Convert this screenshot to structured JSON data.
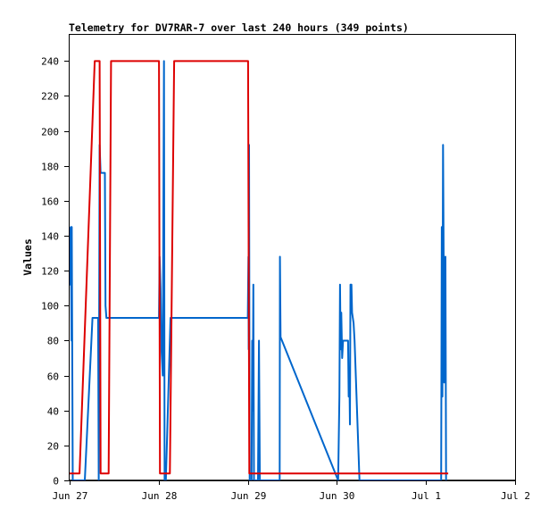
{
  "chart_data": {
    "type": "line",
    "title": "Telemetry for DV7RAR-7 over last 240 hours (349 points)",
    "xlabel": "",
    "ylabel": "Values",
    "x_ticks": [
      "Jun 27",
      "Jun 28",
      "Jun 29",
      "Jun 30",
      "Jul 1",
      "Jul 2"
    ],
    "y_ticks": [
      0,
      20,
      40,
      60,
      80,
      100,
      120,
      140,
      160,
      180,
      200,
      220,
      240
    ],
    "xlim": [
      "Jun 27",
      "Jul 2"
    ],
    "ylim": [
      0,
      255
    ],
    "grid": false,
    "legend": "none",
    "series": [
      {
        "color": "#000000",
        "points": [
          [
            "06-27 00:00",
            0
          ],
          [
            "07-02 00:00",
            0
          ]
        ]
      },
      {
        "color": "#0066cc",
        "points": [
          [
            "06-27 00:00",
            145
          ],
          [
            "06-27 00:10",
            112
          ],
          [
            "06-27 00:20",
            145
          ],
          [
            "06-27 00:30",
            80
          ],
          [
            "06-27 00:35",
            145
          ],
          [
            "06-27 00:40",
            90
          ],
          [
            "06-27 00:50",
            0
          ],
          [
            "06-27 04:05",
            0
          ],
          [
            "06-27 06:10",
            93
          ],
          [
            "06-27 07:40",
            93
          ],
          [
            "06-27 07:50",
            0
          ],
          [
            "06-27 08:05",
            192
          ],
          [
            "06-27 08:20",
            176
          ],
          [
            "06-27 09:30",
            176
          ],
          [
            "06-27 09:40",
            100
          ],
          [
            "06-27 09:55",
            93
          ],
          [
            "06-28 00:05",
            93
          ],
          [
            "06-28 00:15",
            128
          ],
          [
            "06-28 00:30",
            110
          ],
          [
            "06-28 00:45",
            75
          ],
          [
            "06-28 01:05",
            60
          ],
          [
            "06-28 01:25",
            240
          ],
          [
            "06-28 01:35",
            0
          ],
          [
            "06-28 01:55",
            0
          ],
          [
            "06-28 03:10",
            93
          ],
          [
            "06-28 03:20",
            93
          ],
          [
            "06-29 00:00",
            93
          ],
          [
            "06-29 00:10",
            128
          ],
          [
            "06-29 00:15",
            75
          ],
          [
            "06-29 00:20",
            192
          ],
          [
            "06-29 00:30",
            0
          ],
          [
            "06-29 01:00",
            0
          ],
          [
            "06-29 01:10",
            80
          ],
          [
            "06-29 01:20",
            40
          ],
          [
            "06-29 01:30",
            112
          ],
          [
            "06-29 01:40",
            0
          ],
          [
            "06-29 02:30",
            0
          ],
          [
            "06-29 02:45",
            0
          ],
          [
            "06-29 03:00",
            80
          ],
          [
            "06-29 03:15",
            0
          ],
          [
            "06-29 08:35",
            0
          ],
          [
            "06-29 08:40",
            128
          ],
          [
            "06-29 08:50",
            82
          ],
          [
            "06-30 00:20",
            0
          ],
          [
            "06-30 00:40",
            48
          ],
          [
            "06-30 00:50",
            112
          ],
          [
            "06-30 01:00",
            75
          ],
          [
            "06-30 01:10",
            96
          ],
          [
            "06-30 01:25",
            70
          ],
          [
            "06-30 01:40",
            80
          ],
          [
            "06-30 03:00",
            80
          ],
          [
            "06-30 03:10",
            48
          ],
          [
            "06-30 03:20",
            64
          ],
          [
            "06-30 03:30",
            32
          ],
          [
            "06-30 03:40",
            112
          ],
          [
            "06-30 03:55",
            112
          ],
          [
            "06-30 04:05",
            96
          ],
          [
            "06-30 04:30",
            90
          ],
          [
            "06-30 04:45",
            80
          ],
          [
            "06-30 06:05",
            0
          ],
          [
            "07-01 04:05",
            0
          ],
          [
            "07-01 04:15",
            145
          ],
          [
            "07-01 04:25",
            48
          ],
          [
            "07-01 04:35",
            192
          ],
          [
            "07-01 04:45",
            128
          ],
          [
            "07-01 04:55",
            56
          ],
          [
            "07-01 05:05",
            112
          ],
          [
            "07-01 05:15",
            128
          ],
          [
            "07-01 05:25",
            0
          ]
        ]
      },
      {
        "color": "#dd0000",
        "points": [
          [
            "06-27 00:00",
            4
          ],
          [
            "06-27 02:40",
            4
          ],
          [
            "06-27 06:45",
            240
          ],
          [
            "06-27 08:05",
            240
          ],
          [
            "06-27 08:20",
            4
          ],
          [
            "06-27 10:30",
            4
          ],
          [
            "06-27 11:10",
            240
          ],
          [
            "06-28 00:05",
            240
          ],
          [
            "06-28 00:20",
            4
          ],
          [
            "06-28 03:00",
            4
          ],
          [
            "06-28 04:10",
            240
          ],
          [
            "06-29 00:05",
            240
          ],
          [
            "06-29 00:25",
            4
          ],
          [
            "07-01 06:00",
            4
          ]
        ]
      }
    ]
  }
}
